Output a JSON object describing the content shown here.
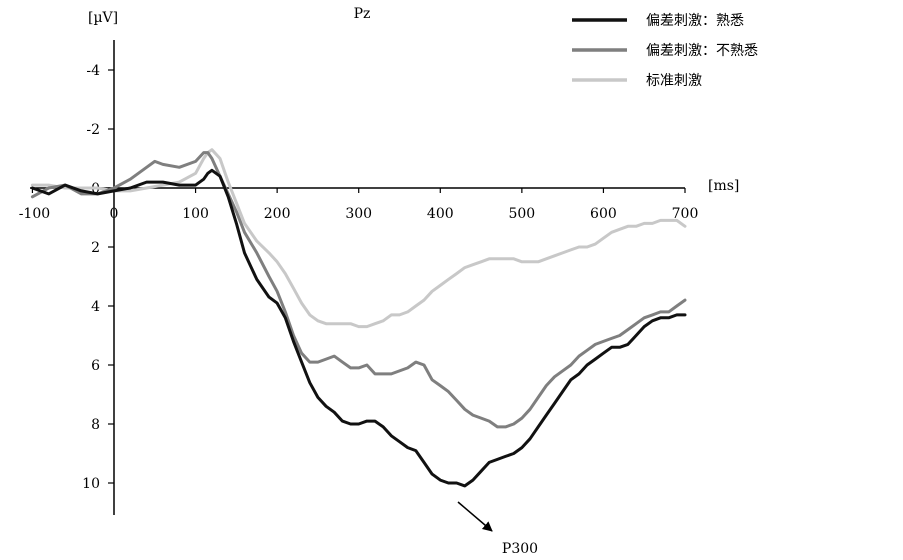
{
  "chart_data": {
    "type": "line",
    "title": "Pz",
    "ylabel_unit": "[µV]",
    "xlabel_unit": "[ms]",
    "y_inverted": true,
    "xlim": [
      -100,
      700
    ],
    "ylim": [
      -4.5,
      11
    ],
    "x_ticks": [
      -100,
      0,
      100,
      200,
      300,
      400,
      500,
      600,
      700
    ],
    "y_ticks": [
      -4,
      -2,
      0,
      2,
      4,
      6,
      8,
      10
    ],
    "legend_position": "top-right",
    "grid": false,
    "series": [
      {
        "name": "偏差刺激：熟悉",
        "color": "#111111",
        "x": [
          -100,
          -80,
          -60,
          -40,
          -20,
          0,
          20,
          40,
          60,
          80,
          100,
          110,
          115,
          120,
          130,
          140,
          150,
          160,
          175,
          190,
          200,
          210,
          220,
          230,
          240,
          250,
          260,
          270,
          280,
          290,
          300,
          310,
          320,
          330,
          340,
          350,
          360,
          370,
          380,
          390,
          400,
          410,
          420,
          430,
          440,
          450,
          460,
          470,
          480,
          490,
          500,
          510,
          520,
          530,
          540,
          550,
          560,
          570,
          580,
          590,
          600,
          610,
          620,
          630,
          640,
          650,
          660,
          670,
          680,
          690,
          700
        ],
        "y": [
          0.0,
          0.2,
          -0.1,
          0.1,
          0.2,
          0.1,
          0.0,
          -0.2,
          -0.2,
          -0.1,
          -0.1,
          -0.3,
          -0.5,
          -0.6,
          -0.4,
          0.3,
          1.2,
          2.2,
          3.1,
          3.7,
          3.9,
          4.4,
          5.2,
          5.9,
          6.6,
          7.1,
          7.4,
          7.6,
          7.9,
          8.0,
          8.0,
          7.9,
          7.9,
          8.1,
          8.4,
          8.6,
          8.8,
          8.9,
          9.3,
          9.7,
          9.9,
          10.0,
          10.0,
          10.1,
          9.9,
          9.6,
          9.3,
          9.2,
          9.1,
          9.0,
          8.8,
          8.5,
          8.1,
          7.7,
          7.3,
          6.9,
          6.5,
          6.3,
          6.0,
          5.8,
          5.6,
          5.4,
          5.4,
          5.3,
          5.0,
          4.7,
          4.5,
          4.4,
          4.4,
          4.3,
          4.3
        ]
      },
      {
        "name": "偏差刺激：不熟悉",
        "color": "#7f7f7f",
        "x": [
          -100,
          -80,
          -60,
          -40,
          -20,
          0,
          20,
          40,
          50,
          60,
          80,
          100,
          110,
          115,
          120,
          130,
          140,
          150,
          160,
          175,
          190,
          200,
          210,
          220,
          230,
          240,
          250,
          260,
          270,
          280,
          290,
          300,
          310,
          320,
          330,
          340,
          350,
          360,
          370,
          380,
          390,
          400,
          410,
          420,
          430,
          440,
          450,
          460,
          470,
          480,
          490,
          500,
          510,
          520,
          530,
          540,
          550,
          560,
          570,
          580,
          590,
          600,
          610,
          620,
          630,
          640,
          650,
          660,
          670,
          680,
          690,
          700
        ],
        "y": [
          0.3,
          0.0,
          -0.1,
          0.2,
          0.2,
          0.0,
          -0.3,
          -0.7,
          -0.9,
          -0.8,
          -0.7,
          -0.9,
          -1.2,
          -1.2,
          -1.0,
          -0.4,
          0.2,
          0.8,
          1.5,
          2.2,
          3.0,
          3.5,
          4.2,
          5.0,
          5.6,
          5.9,
          5.9,
          5.8,
          5.7,
          5.9,
          6.1,
          6.1,
          6.0,
          6.3,
          6.3,
          6.3,
          6.2,
          6.1,
          5.9,
          6.0,
          6.5,
          6.7,
          6.9,
          7.2,
          7.5,
          7.7,
          7.8,
          7.9,
          8.1,
          8.1,
          8.0,
          7.8,
          7.5,
          7.1,
          6.7,
          6.4,
          6.2,
          6.0,
          5.7,
          5.5,
          5.3,
          5.2,
          5.1,
          5.0,
          4.8,
          4.6,
          4.4,
          4.3,
          4.2,
          4.2,
          4.0,
          3.8
        ]
      },
      {
        "name": "标准刺激",
        "color": "#c8c8c8",
        "x": [
          -100,
          -80,
          -60,
          -40,
          -20,
          0,
          20,
          40,
          60,
          80,
          100,
          110,
          115,
          120,
          130,
          140,
          150,
          160,
          175,
          190,
          200,
          210,
          220,
          230,
          240,
          250,
          260,
          270,
          280,
          290,
          300,
          310,
          320,
          330,
          340,
          350,
          360,
          370,
          380,
          390,
          400,
          410,
          420,
          430,
          440,
          450,
          460,
          470,
          480,
          490,
          500,
          510,
          520,
          530,
          540,
          550,
          560,
          570,
          580,
          590,
          600,
          610,
          620,
          630,
          640,
          650,
          660,
          670,
          680,
          690,
          700
        ],
        "y": [
          -0.1,
          -0.1,
          0.0,
          0.0,
          0.0,
          0.1,
          0.1,
          0.0,
          -0.1,
          -0.2,
          -0.5,
          -1.0,
          -1.2,
          -1.3,
          -1.0,
          -0.2,
          0.5,
          1.2,
          1.8,
          2.2,
          2.5,
          2.9,
          3.4,
          3.9,
          4.3,
          4.5,
          4.6,
          4.6,
          4.6,
          4.6,
          4.7,
          4.7,
          4.6,
          4.5,
          4.3,
          4.3,
          4.2,
          4.0,
          3.8,
          3.5,
          3.3,
          3.1,
          2.9,
          2.7,
          2.6,
          2.5,
          2.4,
          2.4,
          2.4,
          2.4,
          2.5,
          2.5,
          2.5,
          2.4,
          2.3,
          2.2,
          2.1,
          2.0,
          2.0,
          1.9,
          1.7,
          1.5,
          1.4,
          1.3,
          1.3,
          1.2,
          1.2,
          1.1,
          1.1,
          1.1,
          1.3
        ]
      }
    ],
    "annotations": [
      {
        "text": "P300",
        "points_to": {
          "x": 430,
          "y": 10.1
        }
      }
    ]
  }
}
